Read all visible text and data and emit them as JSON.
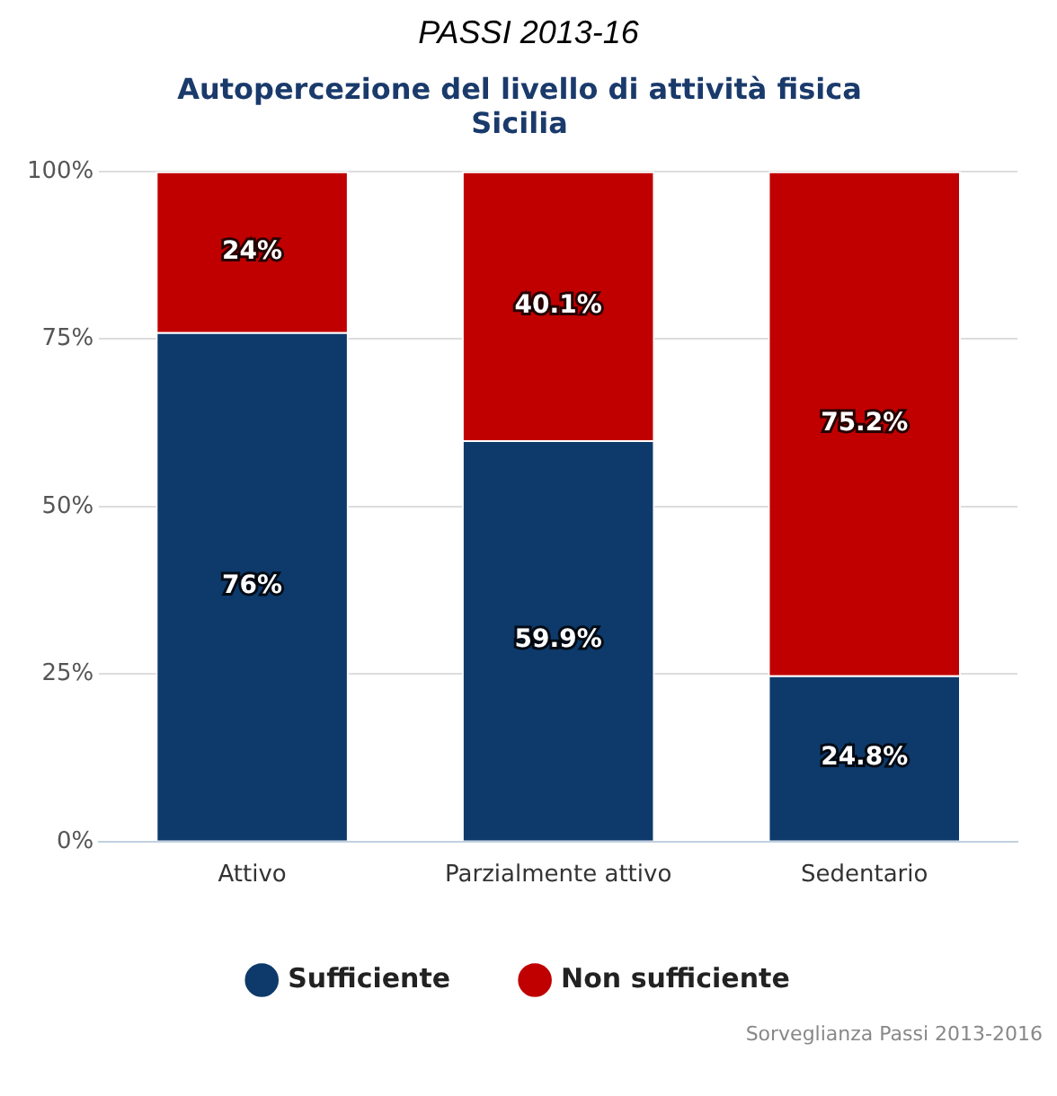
{
  "chart_data": {
    "type": "bar",
    "title": "PASSI 2013-16",
    "subtitle": "Autopercezione del livello di attività fisica\nSicilia",
    "categories": [
      "Attivo",
      "Parzialmente attivo",
      "Sedentario"
    ],
    "series": [
      {
        "name": "Sufficiente",
        "color": "#0d3a6b",
        "values": [
          76,
          59.9,
          24.8
        ],
        "value_labels": [
          "76%",
          "59.9%",
          "24.8%"
        ]
      },
      {
        "name": "Non sufficiente",
        "color": "#c00000",
        "values": [
          24,
          40.1,
          75.2
        ],
        "value_labels": [
          "24%",
          "40.1%",
          "75.2%"
        ]
      }
    ],
    "stacked": true,
    "ylim": [
      0,
      100
    ],
    "yticks": [
      {
        "value": 0,
        "label": "0%"
      },
      {
        "value": 25,
        "label": "25%"
      },
      {
        "value": 50,
        "label": "50%"
      },
      {
        "value": 75,
        "label": "75%"
      },
      {
        "value": 100,
        "label": "100%"
      }
    ],
    "grid": "y",
    "legend": "bottom",
    "annotations": [
      "Sorveglianza Passi 2013-2016"
    ]
  }
}
